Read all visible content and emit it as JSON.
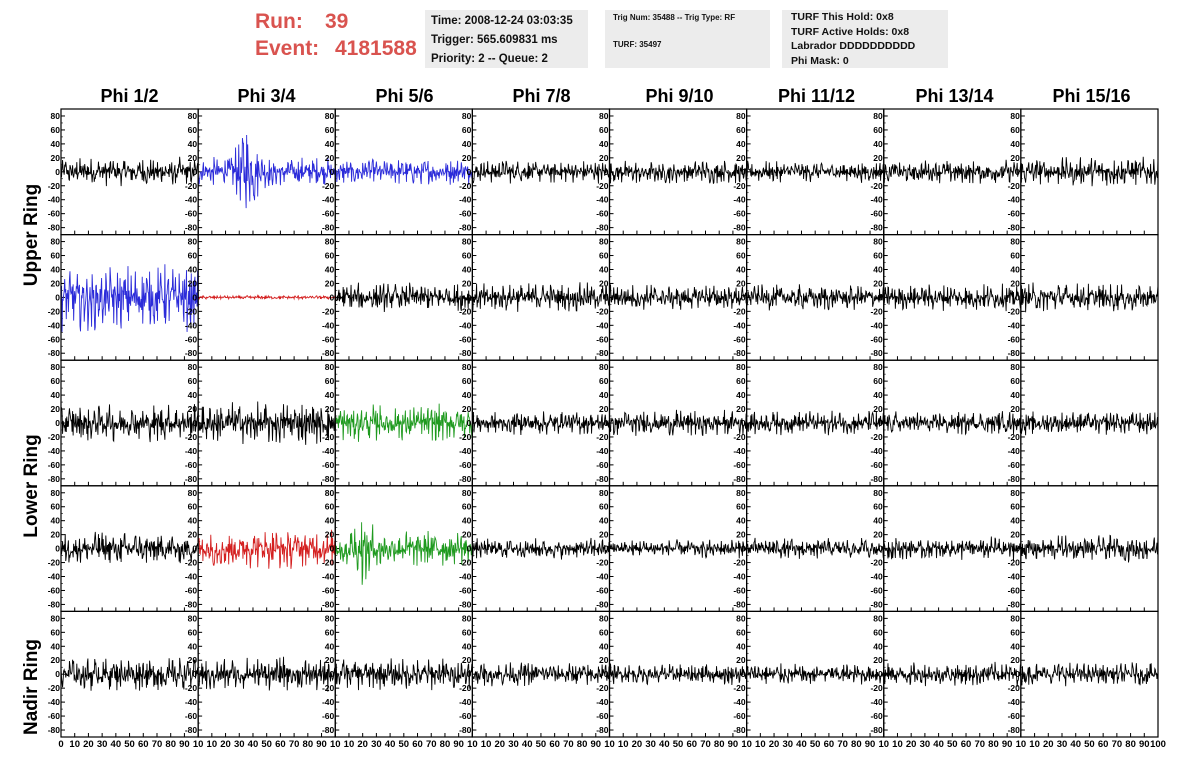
{
  "header": {
    "run_label": "Run:",
    "run_value": "39",
    "event_label": "Event:",
    "event_value": "4181588"
  },
  "time_box": {
    "time": "Time: 2008-12-24 03:03:35",
    "trigger": "Trigger: 565.609831 ms",
    "priority": "Priority: 2 -- Queue: 2"
  },
  "trig_box": {
    "trig": "Trig Num: 35488 -- Trig Type: RF",
    "turf": "TURF: 35497"
  },
  "turf_box": {
    "this_hold": "TURF This Hold: 0x8",
    "active_holds": "TURF Active Holds: 0x8",
    "labrador": "Labrador DDDDDDDDDD",
    "phi_mask": "Phi Mask: 0"
  },
  "columns": [
    "Phi 1/2",
    "Phi 3/4",
    "Phi 5/6",
    "Phi 7/8",
    "Phi 9/10",
    "Phi 11/12",
    "Phi 13/14",
    "Phi 15/16"
  ],
  "rings": [
    "Upper Ring",
    "Lower Ring",
    "Nadir Ring"
  ],
  "colors": {
    "normal": "#000000",
    "blue": "#2b2bd9",
    "red": "#d42020",
    "green": "#1f9a1f",
    "run_text": "#d9534f",
    "info_bg": "#ececec"
  },
  "chart_data": {
    "type": "line",
    "x_range": [
      0,
      100
    ],
    "y_range": [
      -90,
      90
    ],
    "y_ticks": [
      80,
      60,
      40,
      20,
      0,
      -20,
      -40,
      -60,
      -80
    ],
    "x_ticks": [
      0,
      10,
      20,
      30,
      40,
      50,
      60,
      70,
      80,
      90,
      100
    ],
    "x_tick_labels_first_column": [
      "0",
      "10",
      "20",
      "30",
      "40",
      "50",
      "60",
      "70",
      "80",
      "90",
      "10"
    ],
    "x_tick_labels_other_columns": [
      "10",
      "20",
      "30",
      "40",
      "50",
      "60",
      "70",
      "80",
      "90",
      "10"
    ],
    "x_tick_labels_last_column": [
      "10",
      "20",
      "30",
      "40",
      "50",
      "60",
      "70",
      "80",
      "90",
      "100"
    ],
    "panel_rows": 5,
    "panel_cols": 8,
    "panels": [
      [
        {
          "color": "black",
          "amp": 22
        },
        {
          "color": "blue",
          "amp": 22,
          "burst_center": 35,
          "burst_amp": 80
        },
        {
          "color": "blue",
          "amp": 20
        },
        {
          "color": "black",
          "amp": 18
        },
        {
          "color": "black",
          "amp": 18
        },
        {
          "color": "black",
          "amp": 16
        },
        {
          "color": "black",
          "amp": 18
        },
        {
          "color": "black",
          "amp": 22
        }
      ],
      [
        {
          "color": "blue",
          "amp": 50
        },
        {
          "color": "red",
          "amp": 3
        },
        {
          "color": "black",
          "amp": 22
        },
        {
          "color": "black",
          "amp": 22
        },
        {
          "color": "black",
          "amp": 20
        },
        {
          "color": "black",
          "amp": 20
        },
        {
          "color": "black",
          "amp": 20
        },
        {
          "color": "black",
          "amp": 22
        }
      ],
      [
        {
          "color": "black",
          "amp": 28
        },
        {
          "color": "black",
          "amp": 32
        },
        {
          "color": "green",
          "amp": 28
        },
        {
          "color": "black",
          "amp": 18
        },
        {
          "color": "black",
          "amp": 20
        },
        {
          "color": "black",
          "amp": 18
        },
        {
          "color": "black",
          "amp": 18
        },
        {
          "color": "black",
          "amp": 18
        }
      ],
      [
        {
          "color": "black",
          "amp": 25
        },
        {
          "color": "red",
          "amp": 30
        },
        {
          "color": "green",
          "amp": 28,
          "burst_center": 20,
          "burst_amp": 55
        },
        {
          "color": "black",
          "amp": 16
        },
        {
          "color": "black",
          "amp": 14
        },
        {
          "color": "black",
          "amp": 16
        },
        {
          "color": "black",
          "amp": 18
        },
        {
          "color": "black",
          "amp": 20
        }
      ],
      [
        {
          "color": "black",
          "amp": 26
        },
        {
          "color": "black",
          "amp": 26
        },
        {
          "color": "black",
          "amp": 24
        },
        {
          "color": "black",
          "amp": 18
        },
        {
          "color": "black",
          "amp": 16
        },
        {
          "color": "black",
          "amp": 16
        },
        {
          "color": "black",
          "amp": 18
        },
        {
          "color": "black",
          "amp": 18
        }
      ]
    ]
  }
}
